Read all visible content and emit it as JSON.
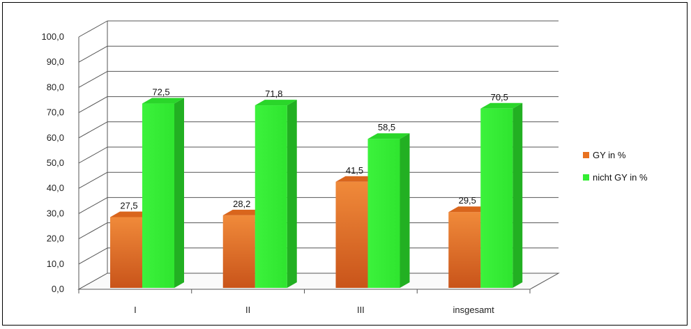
{
  "chart_data": {
    "type": "bar",
    "categories": [
      "I",
      "II",
      "III",
      "insgesamt"
    ],
    "series": [
      {
        "name": "GY in %",
        "values": [
          "27,5",
          "28,2",
          "41,5",
          "29,5"
        ],
        "numeric": [
          27.5,
          28.2,
          41.5,
          29.5
        ],
        "color": "#e8711f"
      },
      {
        "name": "nicht GY in %",
        "values": [
          "72,5",
          "71,8",
          "58,5",
          "70,5"
        ],
        "numeric": [
          72.5,
          71.8,
          58.5,
          70.5
        ],
        "color": "#33ee33"
      }
    ],
    "ylim": [
      0,
      100
    ],
    "yticks": [
      "0,0",
      "10,0",
      "20,0",
      "30,0",
      "40,0",
      "50,0",
      "60,0",
      "70,0",
      "80,0",
      "90,0",
      "100,0"
    ],
    "grid": true,
    "legend_position": "right",
    "style": "3d-column"
  }
}
